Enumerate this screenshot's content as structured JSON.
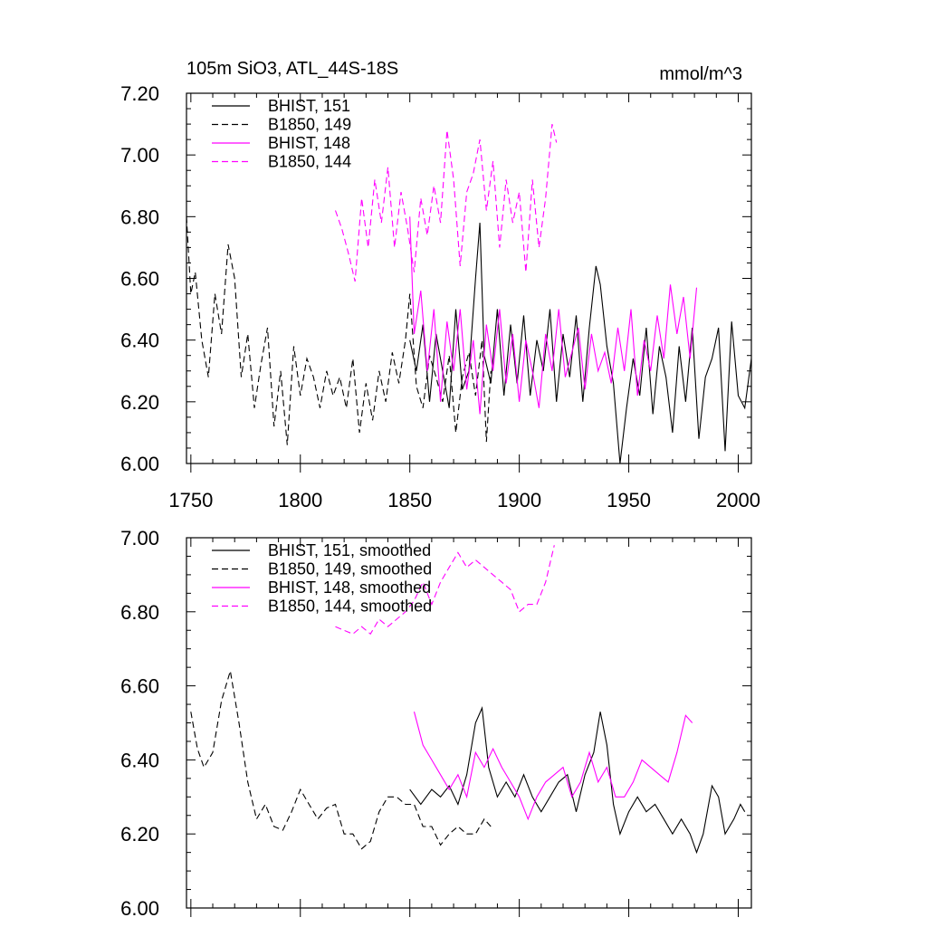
{
  "header": {
    "title": "105m SiO3, ATL_44S-18S",
    "units": "mmol/m^3"
  },
  "colors": {
    "black": "#000000",
    "magenta": "#ff00ff"
  },
  "chart_data": [
    {
      "type": "line",
      "title": "105m SiO3, ATL_44S-18S",
      "units": "mmol/m^3",
      "xlim": [
        1748,
        2006
      ],
      "ylim": [
        6.0,
        7.2
      ],
      "x_ticks": [
        1750,
        1800,
        1850,
        1900,
        1950,
        2000
      ],
      "x_tick_labels": [
        "1750",
        "1800",
        "1850",
        "1900",
        "1950",
        "2000"
      ],
      "y_ticks": [
        6.0,
        6.2,
        6.4,
        6.6,
        6.8,
        7.0,
        7.2
      ],
      "y_tick_labels": [
        "6.00",
        "6.20",
        "6.40",
        "6.60",
        "6.80",
        "7.00",
        "7.20"
      ],
      "legend_position": "top-left",
      "series": [
        {
          "name": "BHIST, 151",
          "color": "#000000",
          "dash": "solid",
          "x": [
            1850,
            1853,
            1856,
            1859,
            1862,
            1865,
            1868,
            1871,
            1874,
            1877,
            1880,
            1882,
            1884,
            1887,
            1890,
            1893,
            1896,
            1899,
            1902,
            1905,
            1908,
            1911,
            1914,
            1917,
            1920,
            1923,
            1926,
            1929,
            1932,
            1935,
            1937,
            1940,
            1943,
            1946,
            1949,
            1952,
            1955,
            1958,
            1961,
            1964,
            1967,
            1970,
            1973,
            1976,
            1979,
            1982,
            1985,
            1988,
            1991,
            1994,
            1997,
            2000,
            2003,
            2006
          ],
          "y": [
            6.4,
            6.3,
            6.45,
            6.2,
            6.42,
            6.3,
            6.18,
            6.5,
            6.24,
            6.3,
            6.6,
            6.78,
            6.35,
            6.26,
            6.5,
            6.22,
            6.45,
            6.26,
            6.48,
            6.22,
            6.4,
            6.3,
            6.5,
            6.2,
            6.42,
            6.28,
            6.48,
            6.2,
            6.44,
            6.64,
            6.58,
            6.38,
            6.26,
            6.0,
            6.18,
            6.34,
            6.22,
            6.44,
            6.16,
            6.38,
            6.28,
            6.1,
            6.38,
            6.2,
            6.44,
            6.08,
            6.28,
            6.34,
            6.44,
            6.04,
            6.46,
            6.22,
            6.18,
            6.34
          ]
        },
        {
          "name": "B1850, 149",
          "color": "#000000",
          "dash": "dashed",
          "x": [
            1748,
            1750,
            1752,
            1755,
            1758,
            1761,
            1764,
            1767,
            1770,
            1773,
            1776,
            1779,
            1782,
            1785,
            1788,
            1791,
            1794,
            1797,
            1800,
            1803,
            1806,
            1809,
            1812,
            1815,
            1818,
            1821,
            1824,
            1827,
            1830,
            1833,
            1836,
            1839,
            1842,
            1845,
            1848,
            1850,
            1853,
            1856,
            1859,
            1862,
            1865,
            1868,
            1871,
            1874,
            1877,
            1880,
            1883,
            1885,
            1887
          ],
          "y": [
            6.8,
            6.55,
            6.62,
            6.4,
            6.28,
            6.55,
            6.42,
            6.71,
            6.6,
            6.28,
            6.42,
            6.18,
            6.32,
            6.44,
            6.12,
            6.3,
            6.06,
            6.38,
            6.22,
            6.34,
            6.28,
            6.18,
            6.3,
            6.22,
            6.28,
            6.18,
            6.34,
            6.1,
            6.26,
            6.14,
            6.3,
            6.2,
            6.36,
            6.26,
            6.4,
            6.55,
            6.25,
            6.18,
            6.35,
            6.28,
            6.2,
            6.35,
            6.1,
            6.28,
            6.36,
            6.22,
            6.4,
            6.07,
            6.3
          ]
        },
        {
          "name": "BHIST, 148",
          "color": "#ff00ff",
          "dash": "solid",
          "x": [
            1850,
            1852,
            1855,
            1858,
            1861,
            1864,
            1867,
            1870,
            1873,
            1876,
            1879,
            1882,
            1885,
            1888,
            1891,
            1894,
            1897,
            1900,
            1903,
            1906,
            1909,
            1912,
            1915,
            1918,
            1921,
            1924,
            1927,
            1930,
            1933,
            1936,
            1939,
            1942,
            1945,
            1948,
            1951,
            1954,
            1957,
            1960,
            1963,
            1966,
            1969,
            1972,
            1975,
            1978,
            1981
          ],
          "y": [
            6.8,
            6.42,
            6.56,
            6.3,
            6.5,
            6.2,
            6.46,
            6.3,
            6.5,
            6.24,
            6.4,
            6.16,
            6.45,
            6.3,
            6.5,
            6.26,
            6.42,
            6.2,
            6.4,
            6.3,
            6.18,
            6.42,
            6.3,
            6.5,
            6.28,
            6.36,
            6.44,
            6.24,
            6.42,
            6.3,
            6.36,
            6.26,
            6.44,
            6.3,
            6.5,
            6.22,
            6.4,
            6.3,
            6.48,
            6.34,
            6.58,
            6.42,
            6.54,
            6.34,
            6.57
          ]
        },
        {
          "name": "B1850, 144",
          "color": "#ff00ff",
          "dash": "dashed",
          "x": [
            1816,
            1819,
            1822,
            1825,
            1828,
            1831,
            1834,
            1837,
            1840,
            1843,
            1846,
            1849,
            1852,
            1855,
            1858,
            1861,
            1864,
            1867,
            1870,
            1873,
            1876,
            1879,
            1882,
            1885,
            1888,
            1891,
            1894,
            1897,
            1900,
            1903,
            1906,
            1909,
            1912,
            1915,
            1917
          ],
          "y": [
            6.82,
            6.76,
            6.68,
            6.59,
            6.86,
            6.7,
            6.92,
            6.78,
            6.96,
            6.7,
            6.88,
            6.76,
            6.62,
            6.86,
            6.74,
            6.9,
            6.78,
            7.08,
            6.92,
            6.64,
            6.88,
            6.94,
            7.05,
            6.82,
            6.98,
            6.7,
            6.92,
            6.78,
            6.88,
            6.62,
            6.92,
            6.7,
            6.86,
            7.1,
            7.04
          ]
        }
      ]
    },
    {
      "type": "line",
      "xlim": [
        1748,
        2006
      ],
      "ylim": [
        6.0,
        7.0
      ],
      "x_ticks": [
        1750,
        1800,
        1850,
        1900,
        1950,
        2000
      ],
      "x_tick_labels": [],
      "y_ticks": [
        6.0,
        6.2,
        6.4,
        6.6,
        6.8,
        7.0
      ],
      "y_tick_labels": [
        "6.00",
        "6.20",
        "6.40",
        "6.60",
        "6.80",
        "7.00"
      ],
      "legend_position": "top-left",
      "series": [
        {
          "name": "BHIST, 151, smoothed",
          "color": "#000000",
          "dash": "solid",
          "x": [
            1850,
            1855,
            1860,
            1864,
            1868,
            1872,
            1876,
            1880,
            1883,
            1886,
            1890,
            1894,
            1898,
            1902,
            1906,
            1910,
            1914,
            1918,
            1922,
            1926,
            1930,
            1934,
            1937,
            1940,
            1943,
            1946,
            1950,
            1954,
            1958,
            1962,
            1966,
            1970,
            1974,
            1978,
            1981,
            1984,
            1988,
            1991,
            1994,
            1998,
            2001,
            2003
          ],
          "y": [
            6.32,
            6.28,
            6.32,
            6.3,
            6.33,
            6.28,
            6.36,
            6.5,
            6.54,
            6.38,
            6.3,
            6.34,
            6.3,
            6.36,
            6.3,
            6.26,
            6.3,
            6.34,
            6.36,
            6.26,
            6.36,
            6.42,
            6.53,
            6.44,
            6.28,
            6.2,
            6.26,
            6.3,
            6.26,
            6.28,
            6.24,
            6.2,
            6.24,
            6.2,
            6.15,
            6.2,
            6.33,
            6.3,
            6.2,
            6.24,
            6.28,
            6.26
          ]
        },
        {
          "name": "B1850, 149, smoothed",
          "color": "#000000",
          "dash": "dashed",
          "x": [
            1750,
            1753,
            1756,
            1760,
            1764,
            1768,
            1772,
            1776,
            1780,
            1784,
            1788,
            1792,
            1796,
            1800,
            1804,
            1808,
            1812,
            1816,
            1820,
            1824,
            1828,
            1832,
            1836,
            1840,
            1844,
            1848,
            1852,
            1856,
            1860,
            1864,
            1868,
            1872,
            1876,
            1880,
            1884,
            1887
          ],
          "y": [
            6.53,
            6.43,
            6.38,
            6.42,
            6.56,
            6.64,
            6.5,
            6.34,
            6.24,
            6.28,
            6.22,
            6.21,
            6.26,
            6.32,
            6.28,
            6.24,
            6.27,
            6.28,
            6.2,
            6.2,
            6.16,
            6.18,
            6.26,
            6.3,
            6.3,
            6.28,
            6.28,
            6.22,
            6.22,
            6.17,
            6.2,
            6.22,
            6.2,
            6.2,
            6.24,
            6.22
          ]
        },
        {
          "name": "BHIST, 148, smoothed",
          "color": "#ff00ff",
          "dash": "solid",
          "x": [
            1852,
            1856,
            1860,
            1864,
            1868,
            1872,
            1876,
            1880,
            1884,
            1888,
            1892,
            1896,
            1900,
            1904,
            1908,
            1912,
            1916,
            1920,
            1924,
            1928,
            1932,
            1936,
            1940,
            1944,
            1948,
            1952,
            1956,
            1960,
            1964,
            1968,
            1972,
            1976,
            1979
          ],
          "y": [
            6.53,
            6.44,
            6.4,
            6.36,
            6.32,
            6.36,
            6.3,
            6.42,
            6.38,
            6.43,
            6.38,
            6.34,
            6.3,
            6.24,
            6.3,
            6.34,
            6.36,
            6.38,
            6.3,
            6.34,
            6.42,
            6.34,
            6.38,
            6.3,
            6.3,
            6.34,
            6.4,
            6.38,
            6.36,
            6.34,
            6.42,
            6.52,
            6.5
          ]
        },
        {
          "name": "B1850, 144, smoothed",
          "color": "#ff00ff",
          "dash": "dashed",
          "x": [
            1816,
            1820,
            1824,
            1828,
            1832,
            1836,
            1840,
            1844,
            1848,
            1852,
            1856,
            1860,
            1864,
            1868,
            1872,
            1876,
            1880,
            1884,
            1888,
            1892,
            1896,
            1900,
            1904,
            1908,
            1912,
            1916
          ],
          "y": [
            6.76,
            6.75,
            6.74,
            6.76,
            6.74,
            6.78,
            6.76,
            6.78,
            6.8,
            6.83,
            6.88,
            6.82,
            6.88,
            6.92,
            6.96,
            6.92,
            6.94,
            6.92,
            6.9,
            6.88,
            6.86,
            6.8,
            6.82,
            6.82,
            6.88,
            6.98
          ]
        }
      ]
    }
  ]
}
